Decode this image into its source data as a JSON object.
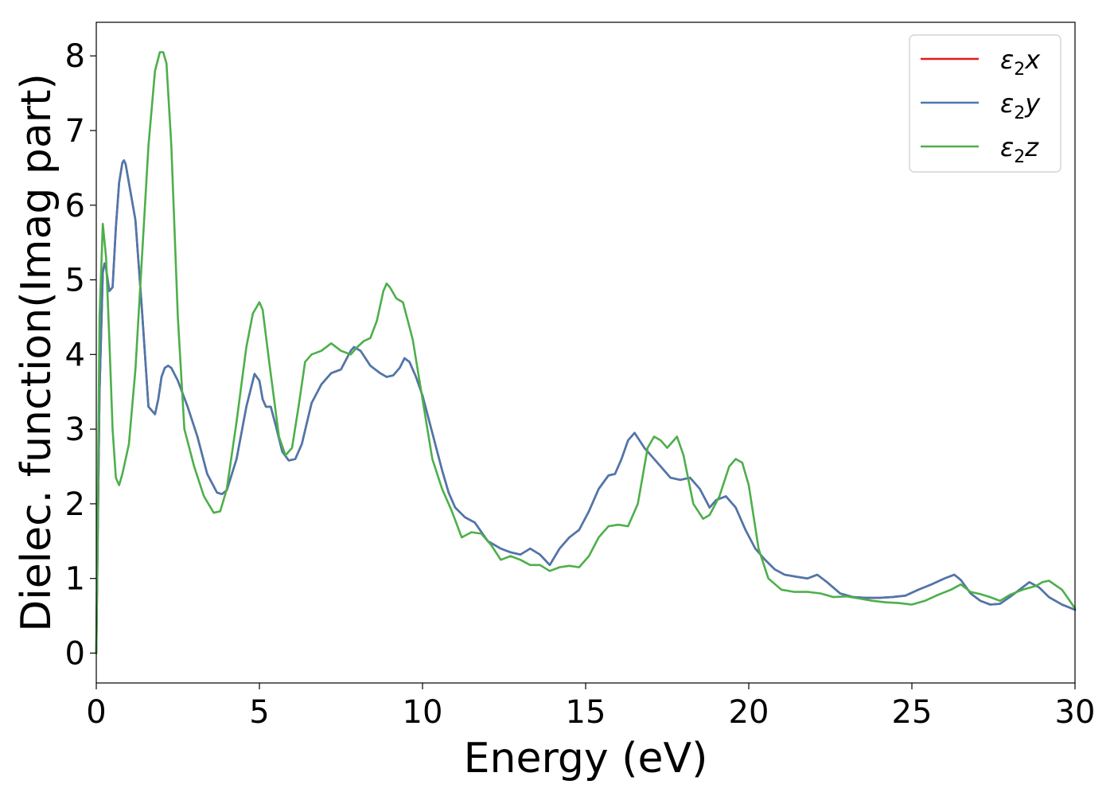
{
  "chart_data": {
    "type": "line",
    "title": "",
    "xlabel": "Energy (eV)",
    "ylabel": "Dielec. function(Imag part)",
    "xlim": [
      0,
      30
    ],
    "ylim": [
      -0.4,
      8.45
    ],
    "xticks": [
      0,
      5,
      10,
      15,
      20,
      25,
      30
    ],
    "yticks": [
      0,
      1,
      2,
      3,
      4,
      5,
      6,
      7,
      8
    ],
    "grid": false,
    "legend_position": "top-right",
    "series": [
      {
        "name": "ε2x",
        "label_base": "ε",
        "label_sub": "2",
        "label_suffix": "x",
        "color": "#e41a1c",
        "x": [
          0,
          0.1,
          0.2,
          0.25,
          0.3,
          0.4,
          0.5,
          0.6,
          0.7,
          0.8,
          0.85,
          0.9,
          1.0,
          1.2,
          1.4,
          1.6,
          1.8,
          1.9,
          2.0,
          2.1,
          2.2,
          2.3,
          2.5,
          2.8,
          3.1,
          3.4,
          3.7,
          3.85,
          4.0,
          4.3,
          4.6,
          4.85,
          5.0,
          5.1,
          5.2,
          5.35,
          5.5,
          5.7,
          5.9,
          6.1,
          6.3,
          6.6,
          6.9,
          7.2,
          7.5,
          7.8,
          7.9,
          8.1,
          8.4,
          8.7,
          8.9,
          9.1,
          9.3,
          9.45,
          9.6,
          9.8,
          10.0,
          10.3,
          10.6,
          10.8,
          11.0,
          11.3,
          11.6,
          12.0,
          12.4,
          12.7,
          13.0,
          13.3,
          13.6,
          13.9,
          14.2,
          14.5,
          14.8,
          15.1,
          15.4,
          15.7,
          15.9,
          16.1,
          16.3,
          16.5,
          16.8,
          17.2,
          17.6,
          17.9,
          18.2,
          18.5,
          18.8,
          19.0,
          19.3,
          19.6,
          19.9,
          20.2,
          20.5,
          20.8,
          21.1,
          21.5,
          21.8,
          22.1,
          22.4,
          22.8,
          23.2,
          23.6,
          24.0,
          24.4,
          24.8,
          25.2,
          25.6,
          26.0,
          26.3,
          26.5,
          26.8,
          27.1,
          27.4,
          27.7,
          28.0,
          28.3,
          28.6,
          28.9,
          29.2,
          29.6,
          30.0
        ],
        "y": [
          0,
          3.5,
          5.1,
          5.22,
          5.15,
          4.85,
          4.9,
          5.7,
          6.3,
          6.57,
          6.6,
          6.55,
          6.3,
          5.8,
          4.6,
          3.3,
          3.2,
          3.4,
          3.7,
          3.82,
          3.85,
          3.82,
          3.65,
          3.3,
          2.9,
          2.4,
          2.15,
          2.13,
          2.18,
          2.6,
          3.3,
          3.74,
          3.65,
          3.4,
          3.3,
          3.3,
          3.05,
          2.7,
          2.58,
          2.6,
          2.8,
          3.35,
          3.6,
          3.75,
          3.8,
          4.05,
          4.1,
          4.05,
          3.85,
          3.75,
          3.7,
          3.72,
          3.82,
          3.95,
          3.9,
          3.7,
          3.45,
          2.95,
          2.45,
          2.15,
          1.95,
          1.82,
          1.75,
          1.5,
          1.4,
          1.35,
          1.32,
          1.4,
          1.32,
          1.18,
          1.4,
          1.55,
          1.65,
          1.9,
          2.2,
          2.38,
          2.4,
          2.6,
          2.85,
          2.95,
          2.75,
          2.55,
          2.35,
          2.32,
          2.35,
          2.2,
          1.95,
          2.05,
          2.1,
          1.95,
          1.65,
          1.4,
          1.25,
          1.12,
          1.05,
          1.02,
          1.0,
          1.05,
          0.95,
          0.8,
          0.75,
          0.74,
          0.74,
          0.75,
          0.77,
          0.85,
          0.92,
          1.0,
          1.05,
          0.98,
          0.8,
          0.7,
          0.65,
          0.66,
          0.75,
          0.85,
          0.95,
          0.88,
          0.75,
          0.65,
          0.58
        ]
      },
      {
        "name": "ε2y",
        "label_base": "ε",
        "label_sub": "2",
        "label_suffix": "y",
        "color": "#4a78ae",
        "x": [
          0,
          0.1,
          0.2,
          0.25,
          0.3,
          0.4,
          0.5,
          0.6,
          0.7,
          0.8,
          0.85,
          0.9,
          1.0,
          1.2,
          1.4,
          1.6,
          1.8,
          1.9,
          2.0,
          2.1,
          2.2,
          2.3,
          2.5,
          2.8,
          3.1,
          3.4,
          3.7,
          3.85,
          4.0,
          4.3,
          4.6,
          4.85,
          5.0,
          5.1,
          5.2,
          5.35,
          5.5,
          5.7,
          5.9,
          6.1,
          6.3,
          6.6,
          6.9,
          7.2,
          7.5,
          7.8,
          7.9,
          8.1,
          8.4,
          8.7,
          8.9,
          9.1,
          9.3,
          9.45,
          9.6,
          9.8,
          10.0,
          10.3,
          10.6,
          10.8,
          11.0,
          11.3,
          11.6,
          12.0,
          12.4,
          12.7,
          13.0,
          13.3,
          13.6,
          13.9,
          14.2,
          14.5,
          14.8,
          15.1,
          15.4,
          15.7,
          15.9,
          16.1,
          16.3,
          16.5,
          16.8,
          17.2,
          17.6,
          17.9,
          18.2,
          18.5,
          18.8,
          19.0,
          19.3,
          19.6,
          19.9,
          20.2,
          20.5,
          20.8,
          21.1,
          21.5,
          21.8,
          22.1,
          22.4,
          22.8,
          23.2,
          23.6,
          24.0,
          24.4,
          24.8,
          25.2,
          25.6,
          26.0,
          26.3,
          26.5,
          26.8,
          27.1,
          27.4,
          27.7,
          28.0,
          28.3,
          28.6,
          28.9,
          29.2,
          29.6,
          30.0
        ],
        "y": [
          0,
          3.5,
          5.1,
          5.22,
          5.15,
          4.85,
          4.9,
          5.7,
          6.3,
          6.57,
          6.6,
          6.55,
          6.3,
          5.8,
          4.6,
          3.3,
          3.2,
          3.4,
          3.7,
          3.82,
          3.85,
          3.82,
          3.65,
          3.3,
          2.9,
          2.4,
          2.15,
          2.13,
          2.18,
          2.6,
          3.3,
          3.74,
          3.65,
          3.4,
          3.3,
          3.3,
          3.05,
          2.7,
          2.58,
          2.6,
          2.8,
          3.35,
          3.6,
          3.75,
          3.8,
          4.05,
          4.1,
          4.05,
          3.85,
          3.75,
          3.7,
          3.72,
          3.82,
          3.95,
          3.9,
          3.7,
          3.45,
          2.95,
          2.45,
          2.15,
          1.95,
          1.82,
          1.75,
          1.5,
          1.4,
          1.35,
          1.32,
          1.4,
          1.32,
          1.18,
          1.4,
          1.55,
          1.65,
          1.9,
          2.2,
          2.38,
          2.4,
          2.6,
          2.85,
          2.95,
          2.75,
          2.55,
          2.35,
          2.32,
          2.35,
          2.2,
          1.95,
          2.05,
          2.1,
          1.95,
          1.65,
          1.4,
          1.25,
          1.12,
          1.05,
          1.02,
          1.0,
          1.05,
          0.95,
          0.8,
          0.75,
          0.74,
          0.74,
          0.75,
          0.77,
          0.85,
          0.92,
          1.0,
          1.05,
          0.98,
          0.8,
          0.7,
          0.65,
          0.66,
          0.75,
          0.85,
          0.95,
          0.88,
          0.75,
          0.65,
          0.58
        ]
      },
      {
        "name": "ε2z",
        "label_base": "ε",
        "label_sub": "2",
        "label_suffix": "z",
        "color": "#4daf4a",
        "x": [
          0,
          0.1,
          0.2,
          0.3,
          0.4,
          0.5,
          0.6,
          0.7,
          0.8,
          0.9,
          1.0,
          1.2,
          1.4,
          1.6,
          1.8,
          1.95,
          2.05,
          2.15,
          2.3,
          2.5,
          2.7,
          3.0,
          3.3,
          3.6,
          3.8,
          4.0,
          4.3,
          4.6,
          4.8,
          5.0,
          5.1,
          5.3,
          5.6,
          5.8,
          6.0,
          6.2,
          6.4,
          6.6,
          6.9,
          7.2,
          7.5,
          7.8,
          8.0,
          8.2,
          8.4,
          8.6,
          8.8,
          8.9,
          9.0,
          9.2,
          9.4,
          9.7,
          10.0,
          10.3,
          10.6,
          10.9,
          11.2,
          11.5,
          11.8,
          12.1,
          12.4,
          12.7,
          13.0,
          13.3,
          13.6,
          13.9,
          14.2,
          14.5,
          14.8,
          15.1,
          15.4,
          15.7,
          16.0,
          16.3,
          16.6,
          16.9,
          17.1,
          17.3,
          17.5,
          17.8,
          18.0,
          18.3,
          18.6,
          18.8,
          19.1,
          19.4,
          19.6,
          19.8,
          20.0,
          20.3,
          20.6,
          21.0,
          21.4,
          21.8,
          22.2,
          22.6,
          23.0,
          23.4,
          23.8,
          24.2,
          24.6,
          25.0,
          25.4,
          25.8,
          26.2,
          26.5,
          26.8,
          27.1,
          27.4,
          27.7,
          28.0,
          28.4,
          28.8,
          29.0,
          29.2,
          29.6,
          30.0
        ],
        "y": [
          0,
          4.5,
          5.75,
          5.3,
          4.2,
          3.0,
          2.35,
          2.25,
          2.4,
          2.6,
          2.8,
          3.8,
          5.3,
          6.8,
          7.8,
          8.05,
          8.05,
          7.9,
          6.8,
          4.5,
          3.0,
          2.5,
          2.1,
          1.88,
          1.9,
          2.2,
          3.1,
          4.1,
          4.55,
          4.7,
          4.6,
          3.9,
          2.9,
          2.65,
          2.75,
          3.3,
          3.9,
          4.0,
          4.05,
          4.15,
          4.05,
          4.0,
          4.1,
          4.18,
          4.22,
          4.45,
          4.85,
          4.95,
          4.9,
          4.75,
          4.7,
          4.2,
          3.4,
          2.6,
          2.2,
          1.9,
          1.55,
          1.62,
          1.6,
          1.45,
          1.25,
          1.3,
          1.25,
          1.18,
          1.18,
          1.1,
          1.15,
          1.17,
          1.15,
          1.3,
          1.55,
          1.7,
          1.72,
          1.7,
          2.0,
          2.75,
          2.9,
          2.85,
          2.75,
          2.9,
          2.65,
          2.0,
          1.8,
          1.85,
          2.1,
          2.5,
          2.6,
          2.55,
          2.25,
          1.4,
          1.0,
          0.85,
          0.82,
          0.82,
          0.8,
          0.75,
          0.76,
          0.73,
          0.7,
          0.68,
          0.67,
          0.65,
          0.7,
          0.78,
          0.85,
          0.92,
          0.82,
          0.79,
          0.75,
          0.7,
          0.78,
          0.85,
          0.9,
          0.95,
          0.97,
          0.85,
          0.6
        ]
      }
    ]
  }
}
